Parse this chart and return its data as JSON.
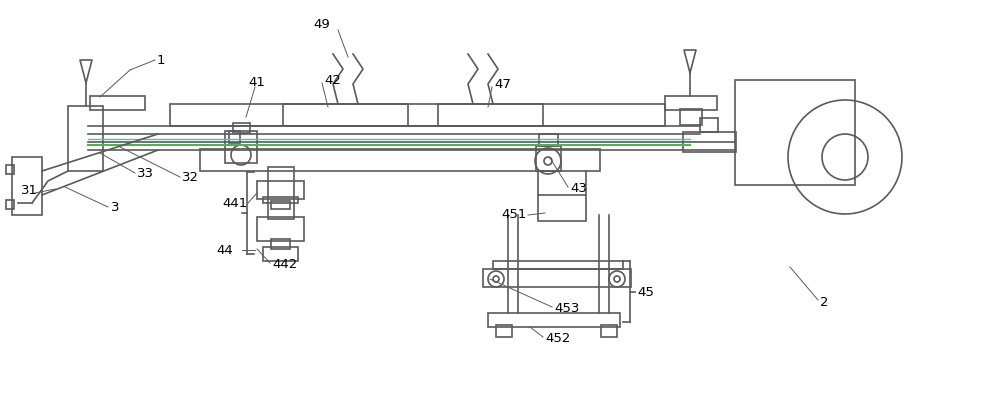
{
  "bg_color": "#ffffff",
  "line_color": "#5a5a5a",
  "line_width": 1.2,
  "thin_line": 0.7,
  "label_color": "#000000"
}
